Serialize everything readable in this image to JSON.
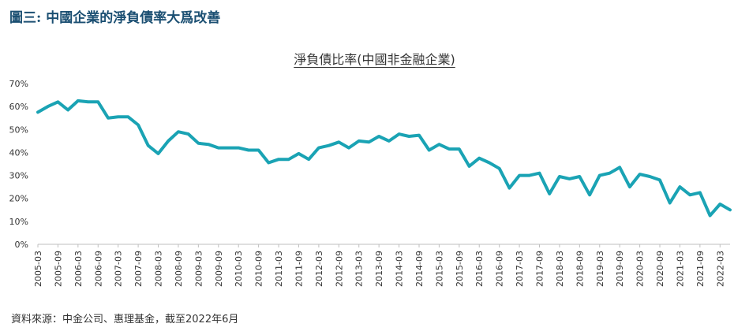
{
  "figure": {
    "title": "圖三: 中國企業的淨負債率大爲改善",
    "source": "資料來源：中金公司、惠理基金，截至2022年6月"
  },
  "colors": {
    "line": "#1aa3b4",
    "axis": "#bfbfbf",
    "title": "#1b4f72"
  },
  "chart_data": {
    "type": "line",
    "title": "淨負債比率(中國非金融企業)",
    "xlabel": "",
    "ylabel": "",
    "ylim": [
      0,
      70
    ],
    "grid": false,
    "legend": "none",
    "y_ticks": [
      "0%",
      "10%",
      "20%",
      "30%",
      "40%",
      "50%",
      "60%",
      "70%"
    ],
    "x_tick_labels": [
      "2005-03",
      "2005-09",
      "2006-03",
      "2006-09",
      "2007-03",
      "2007-09",
      "2008-03",
      "2008-09",
      "2009-03",
      "2009-09",
      "2010-03",
      "2010-09",
      "2011-03",
      "2011-09",
      "2012-03",
      "2012-09",
      "2013-03",
      "2013-09",
      "2014-03",
      "2014-09",
      "2015-03",
      "2015-09",
      "2016-03",
      "2016-09",
      "2017-03",
      "2017-09",
      "2018-03",
      "2018-09",
      "2019-03",
      "2019-09",
      "2020-03",
      "2020-09",
      "2021-03",
      "2021-09",
      "2022-03"
    ],
    "x": [
      "2005-03",
      "2005-06",
      "2005-09",
      "2005-12",
      "2006-03",
      "2006-06",
      "2006-09",
      "2006-12",
      "2007-03",
      "2007-06",
      "2007-09",
      "2007-12",
      "2008-03",
      "2008-06",
      "2008-09",
      "2008-12",
      "2009-03",
      "2009-06",
      "2009-09",
      "2009-12",
      "2010-03",
      "2010-06",
      "2010-09",
      "2010-12",
      "2011-03",
      "2011-06",
      "2011-09",
      "2011-12",
      "2012-03",
      "2012-06",
      "2012-09",
      "2012-12",
      "2013-03",
      "2013-06",
      "2013-09",
      "2013-12",
      "2014-03",
      "2014-06",
      "2014-09",
      "2014-12",
      "2015-03",
      "2015-06",
      "2015-09",
      "2015-12",
      "2016-03",
      "2016-06",
      "2016-09",
      "2016-12",
      "2017-03",
      "2017-06",
      "2017-09",
      "2017-12",
      "2018-03",
      "2018-06",
      "2018-09",
      "2018-12",
      "2019-03",
      "2019-06",
      "2019-09",
      "2019-12",
      "2020-03",
      "2020-06",
      "2020-09",
      "2020-12",
      "2021-03",
      "2021-06",
      "2021-09",
      "2021-12",
      "2022-03",
      "2022-06"
    ],
    "series": [
      {
        "values": [
          57.5,
          60,
          62,
          58.5,
          62.5,
          62,
          62,
          55,
          55.5,
          55.5,
          52,
          43,
          39.5,
          45,
          49,
          48,
          44,
          43.5,
          42,
          42,
          42,
          41,
          41,
          35.5,
          37,
          37,
          39.5,
          37,
          42,
          43,
          44.5,
          42,
          45,
          44.5,
          47,
          45,
          48,
          47,
          47.5,
          41,
          43.5,
          41.5,
          41.5,
          34,
          37.5,
          35.5,
          33,
          24.5,
          30,
          30,
          31,
          22,
          29.5,
          28.5,
          29.5,
          21.5,
          30,
          31,
          33.5,
          25,
          30.5,
          29.5,
          28,
          18,
          25,
          21.5,
          22.5,
          12.5,
          17.5,
          15
        ]
      }
    ]
  }
}
